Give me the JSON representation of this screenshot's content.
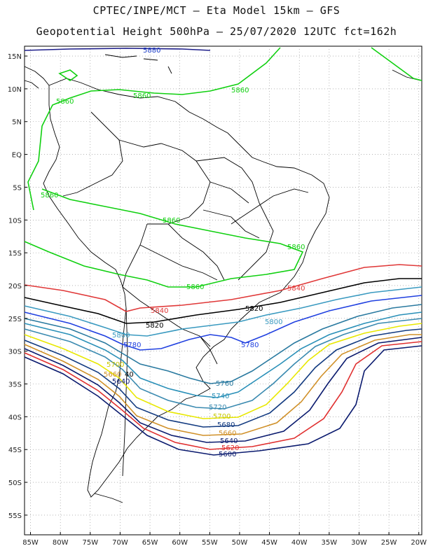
{
  "title": {
    "line1": "CPTEC/INPE/MCT –  Eta Model 15km – GFS",
    "line2": "Geopotential Height 500hPa – 25/07/2020 12UTC fct=162h"
  },
  "map": {
    "lat_labels": [
      "15N",
      "10N",
      "5N",
      "EQ",
      "5S",
      "10S",
      "15S",
      "20S",
      "25S",
      "30S",
      "35S",
      "40S",
      "45S",
      "50S",
      "55S"
    ],
    "lon_labels": [
      "85W",
      "80W",
      "75W",
      "70W",
      "65W",
      "60W",
      "55W",
      "50W",
      "45W",
      "40W",
      "35W",
      "30W",
      "25W",
      "20W"
    ],
    "lon_range": [
      -86,
      -19.5
    ],
    "lat_range": [
      -58,
      16.5
    ]
  },
  "colors": {
    "c5580": "#1e1e8a",
    "c5600": "#0a1a6e",
    "c5620": "#e03030",
    "c5640": "#0a1a6e",
    "c5660": "#d09028",
    "c5680": "#123a80",
    "c5700": "#e8e800",
    "c5720": "#3a8ab0",
    "c5740": "#2a90b8",
    "c5760": "#2a7aa0",
    "c5780": "#2040e0",
    "c5800": "#3a9ac0",
    "c5820": "#000000",
    "c5840": "#e03838",
    "c5860": "#10d010",
    "grid": "#888888"
  },
  "contour_labels": {
    "l5880": "5880",
    "l5860": "5860",
    "l5840": "5840",
    "l5820": "5820",
    "l5800": "5800",
    "l5780": "5780",
    "l5760": "5760",
    "l5740": "5740",
    "l5720": "5720",
    "l5700": "5700",
    "l5680": "5680",
    "l5660": "5660",
    "l5640": "5640",
    "l5620": "5620",
    "l5600": "5600",
    "l5700b": "5700",
    "l5660b": "5660",
    "l5640b": "5640",
    "l5620b": "5620",
    "l40": "40"
  }
}
